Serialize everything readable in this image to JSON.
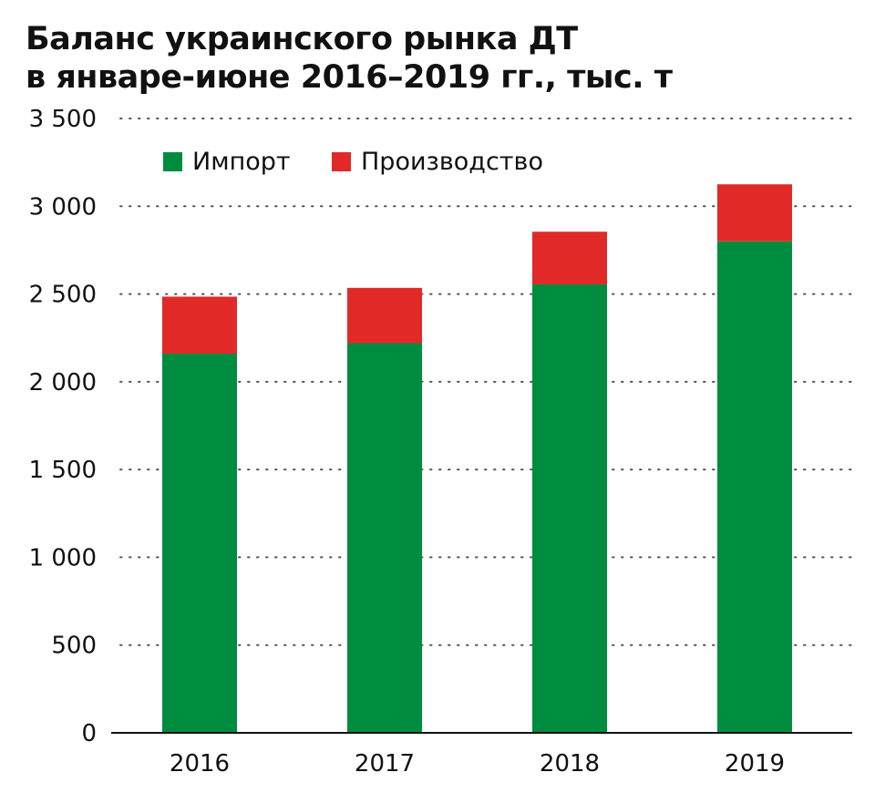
{
  "chart_data": {
    "type": "bar",
    "stacked": true,
    "title_lines": [
      "Баланс украинского рынка ДТ",
      "в январе-июне 2016–2019 гг., тыс. т"
    ],
    "categories": [
      "2016",
      "2017",
      "2018",
      "2019"
    ],
    "series": [
      {
        "name": "Импорт",
        "color": "#008c3e",
        "values": [
          2160,
          2220,
          2555,
          2800
        ]
      },
      {
        "name": "Производство",
        "color": "#e12a27",
        "values": [
          325,
          315,
          300,
          325
        ]
      }
    ],
    "ylim": [
      0,
      3500
    ],
    "yticks": [
      0,
      500,
      1000,
      1500,
      2000,
      2500,
      3000,
      3500
    ],
    "ytick_labels": [
      "0",
      "500",
      "1 000",
      "1 500",
      "2 000",
      "2 500",
      "3 000",
      "3 500"
    ],
    "grid": "dotted horizontal",
    "legend_position": "top-left"
  }
}
